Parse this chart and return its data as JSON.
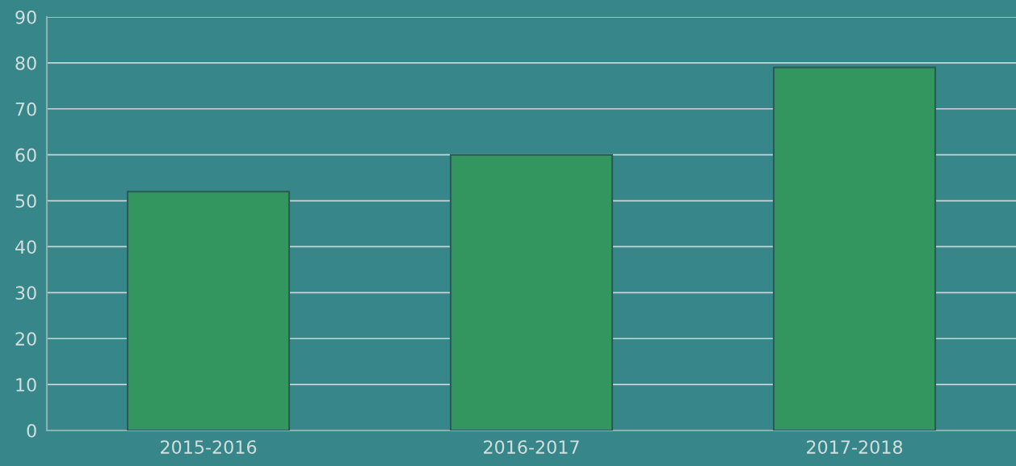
{
  "chart_data": {
    "type": "bar",
    "categories": [
      "2015-2016",
      "2016-2017",
      "2017-2018"
    ],
    "values": [
      52,
      60,
      79
    ],
    "color": "#33965f",
    "ylim": [
      0,
      90
    ],
    "yticks": [
      0,
      10,
      20,
      30,
      40,
      50,
      60,
      70,
      80,
      90
    ],
    "grid": "y"
  }
}
